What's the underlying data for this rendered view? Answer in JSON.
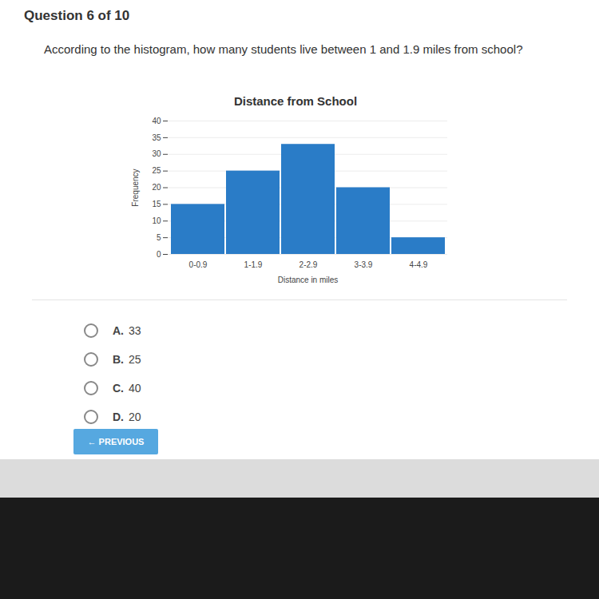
{
  "header": "Question 6 of 10",
  "question": "According to the histogram, how many students live between 1 and 1.9 miles from school?",
  "chart_data": {
    "type": "bar",
    "title": "Distance from School",
    "x_label": "Distance in miles",
    "y_label": "Frequency",
    "categories": [
      "0-0.9",
      "1-1.9",
      "2-2.9",
      "3-3.9",
      "4-4.9"
    ],
    "values": [
      15,
      25,
      33,
      20,
      5
    ],
    "color": "#2a7cc7",
    "ylim": [
      0,
      40
    ],
    "yticks": [
      0,
      5,
      10,
      15,
      20,
      25,
      30,
      35,
      40
    ],
    "grid": true
  },
  "options": [
    {
      "label": "A.",
      "text": "33"
    },
    {
      "label": "B.",
      "text": "25"
    },
    {
      "label": "C.",
      "text": "40"
    },
    {
      "label": "D.",
      "text": "20"
    }
  ],
  "button": "← PREVIOUS"
}
